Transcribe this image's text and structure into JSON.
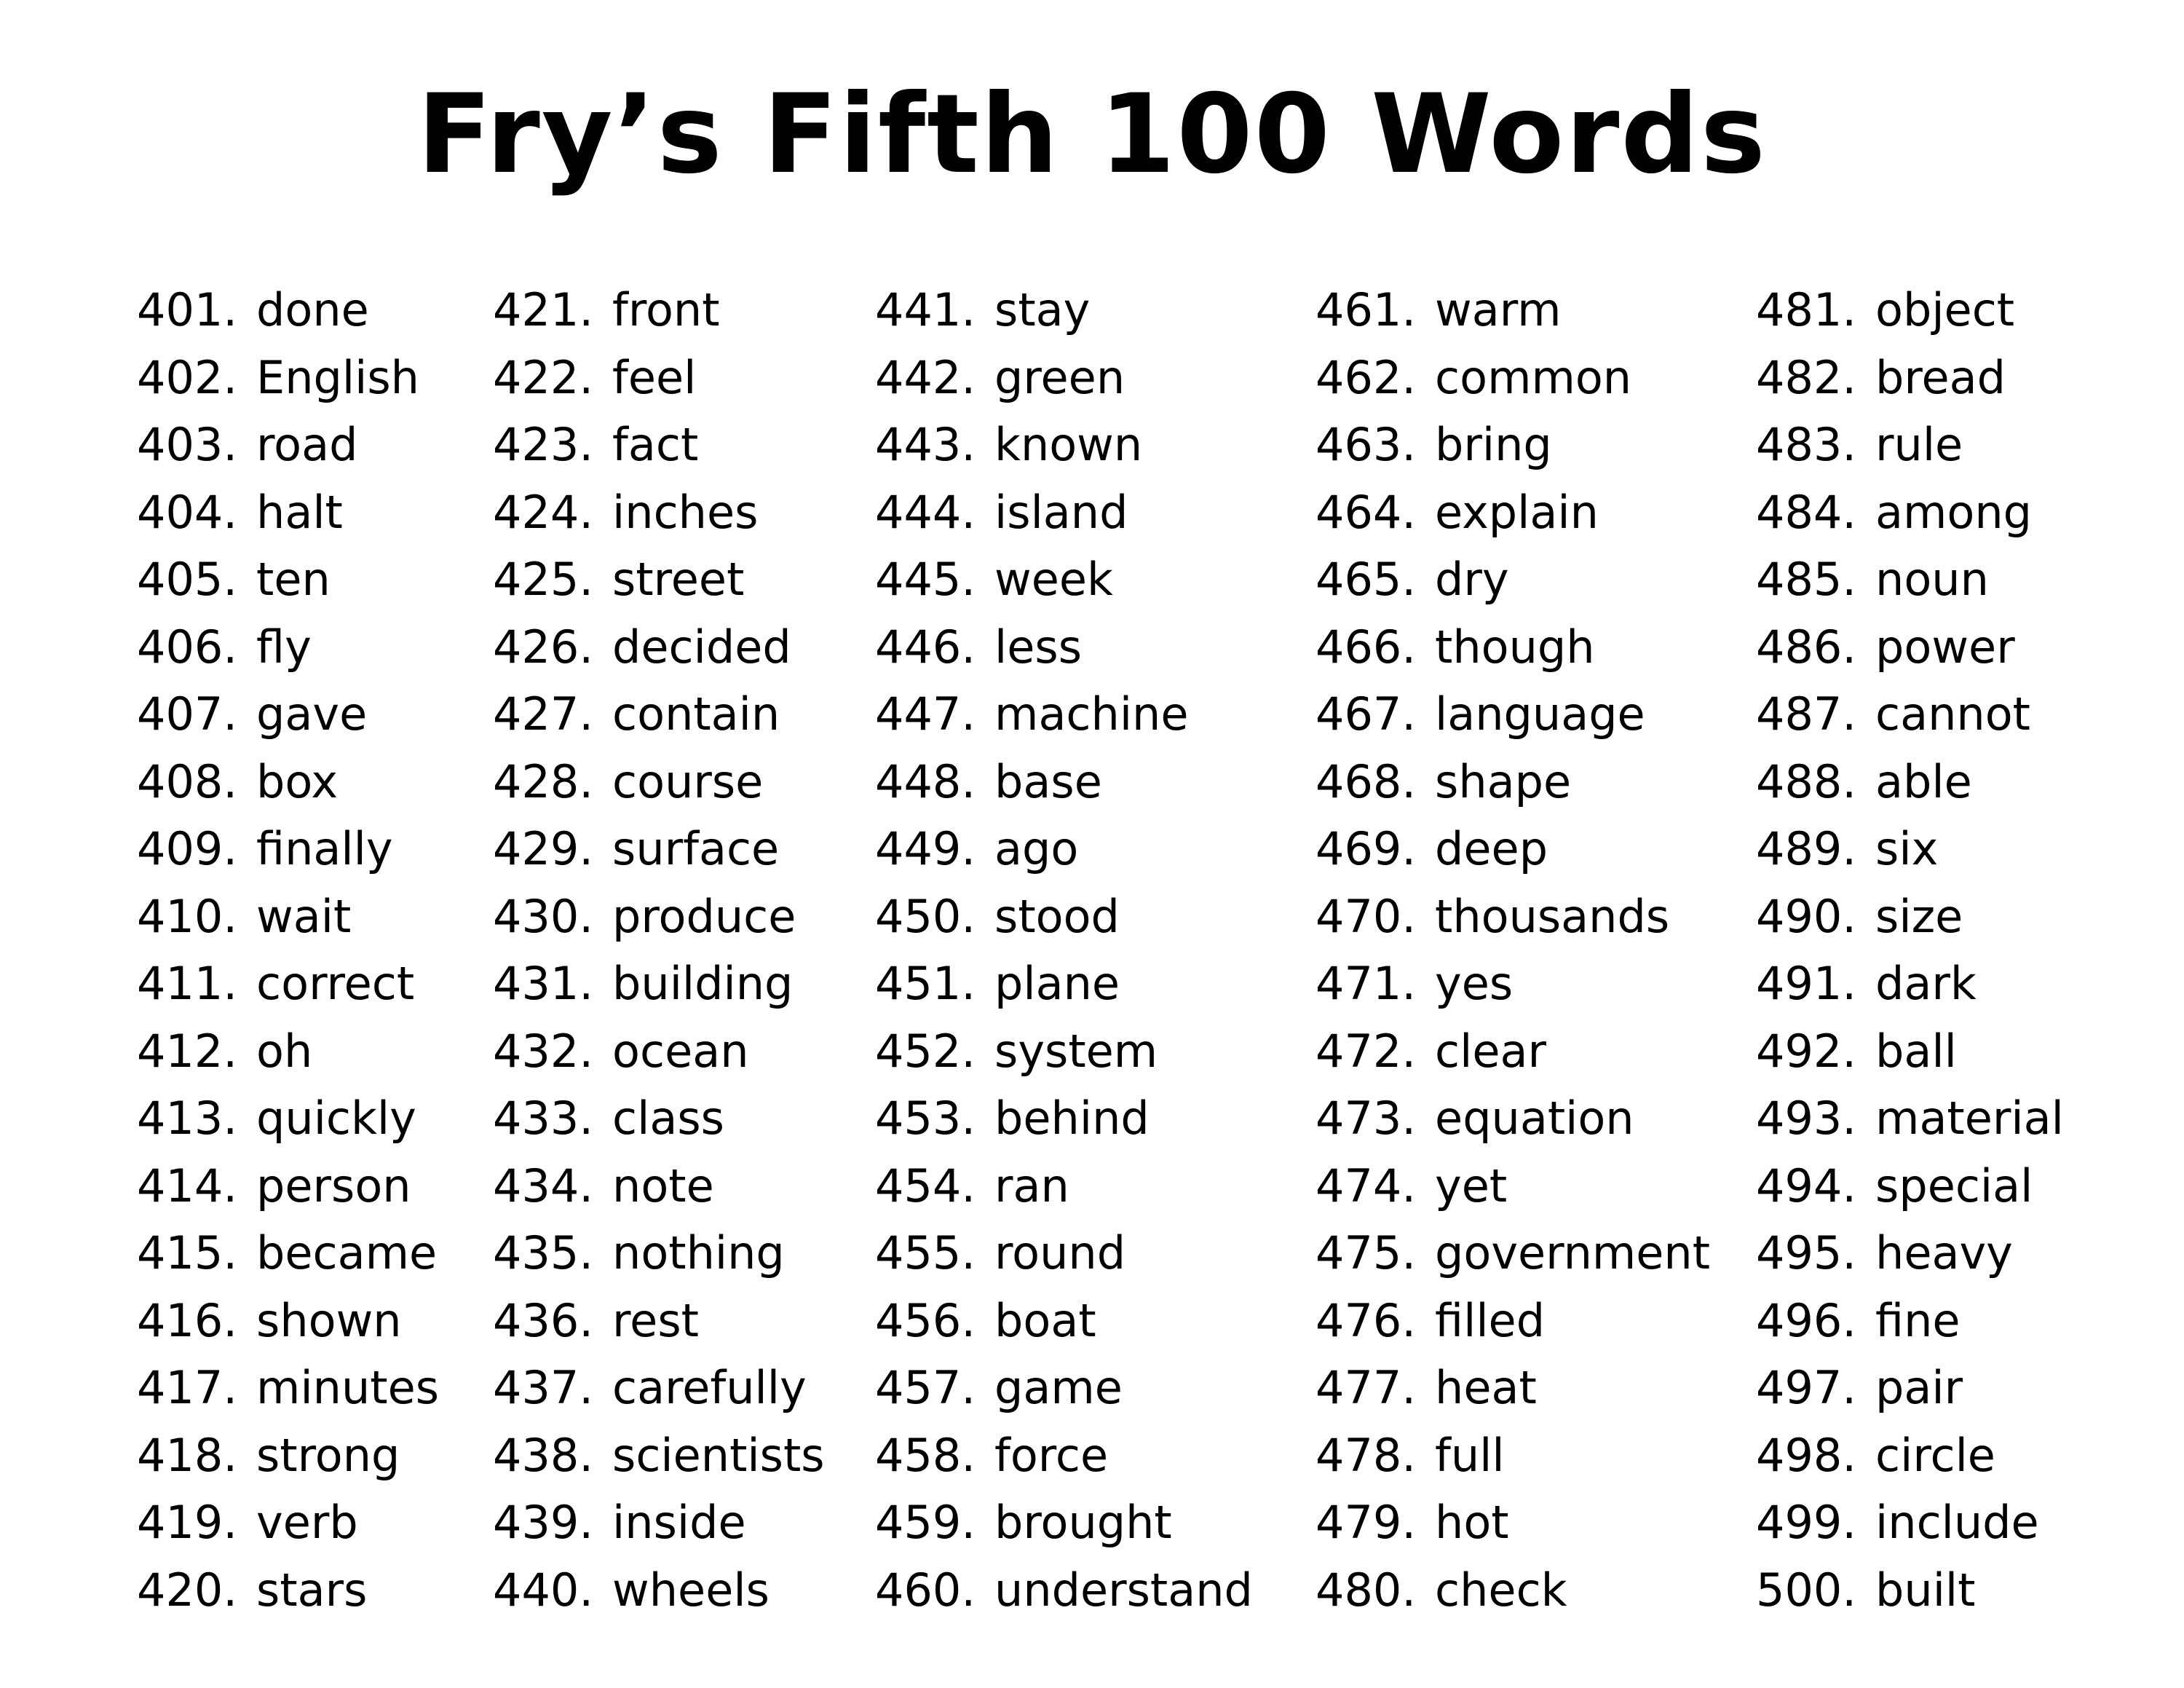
{
  "title": "Fry’s Fifth 100 Words",
  "columns": [
    {
      "items": [
        {
          "num": "401.",
          "word": "done"
        },
        {
          "num": "402.",
          "word": "English"
        },
        {
          "num": "403.",
          "word": "road"
        },
        {
          "num": "404.",
          "word": "halt"
        },
        {
          "num": "405.",
          "word": "ten"
        },
        {
          "num": "406.",
          "word": "fly"
        },
        {
          "num": "407.",
          "word": "gave"
        },
        {
          "num": "408.",
          "word": "box"
        },
        {
          "num": "409.",
          "word": "finally"
        },
        {
          "num": "410.",
          "word": "wait"
        },
        {
          "num": "411.",
          "word": "correct"
        },
        {
          "num": "412.",
          "word": "oh"
        },
        {
          "num": "413.",
          "word": "quickly"
        },
        {
          "num": "414.",
          "word": "person"
        },
        {
          "num": "415.",
          "word": "became"
        },
        {
          "num": "416.",
          "word": "shown"
        },
        {
          "num": "417.",
          "word": "minutes"
        },
        {
          "num": "418.",
          "word": "strong"
        },
        {
          "num": "419.",
          "word": "verb"
        },
        {
          "num": "420.",
          "word": "stars"
        }
      ]
    },
    {
      "items": [
        {
          "num": "421.",
          "word": "front"
        },
        {
          "num": "422.",
          "word": "feel"
        },
        {
          "num": "423.",
          "word": "fact"
        },
        {
          "num": "424.",
          "word": "inches"
        },
        {
          "num": "425.",
          "word": "street"
        },
        {
          "num": "426.",
          "word": "decided"
        },
        {
          "num": "427.",
          "word": "contain"
        },
        {
          "num": "428.",
          "word": "course"
        },
        {
          "num": "429.",
          "word": "surface"
        },
        {
          "num": "430.",
          "word": "produce"
        },
        {
          "num": "431.",
          "word": "building"
        },
        {
          "num": "432.",
          "word": "ocean"
        },
        {
          "num": "433.",
          "word": "class"
        },
        {
          "num": "434.",
          "word": "note"
        },
        {
          "num": "435.",
          "word": "nothing"
        },
        {
          "num": "436.",
          "word": "rest"
        },
        {
          "num": "437.",
          "word": "carefully"
        },
        {
          "num": "438.",
          "word": "scientists"
        },
        {
          "num": "439.",
          "word": "inside"
        },
        {
          "num": "440.",
          "word": "wheels"
        }
      ]
    },
    {
      "items": [
        {
          "num": "441.",
          "word": "stay"
        },
        {
          "num": "442.",
          "word": "green"
        },
        {
          "num": "443.",
          "word": "known"
        },
        {
          "num": "444.",
          "word": "island"
        },
        {
          "num": "445.",
          "word": "week"
        },
        {
          "num": "446.",
          "word": "less"
        },
        {
          "num": "447.",
          "word": "machine"
        },
        {
          "num": "448.",
          "word": "base"
        },
        {
          "num": "449.",
          "word": "ago"
        },
        {
          "num": "450.",
          "word": "stood"
        },
        {
          "num": "451.",
          "word": "plane"
        },
        {
          "num": "452.",
          "word": "system"
        },
        {
          "num": "453.",
          "word": "behind"
        },
        {
          "num": "454.",
          "word": "ran"
        },
        {
          "num": "455.",
          "word": "round"
        },
        {
          "num": "456.",
          "word": "boat"
        },
        {
          "num": "457.",
          "word": "game"
        },
        {
          "num": "458.",
          "word": "force"
        },
        {
          "num": "459.",
          "word": "brought"
        },
        {
          "num": "460.",
          "word": "understand"
        }
      ]
    },
    {
      "items": [
        {
          "num": "461.",
          "word": "warm"
        },
        {
          "num": "462.",
          "word": "common"
        },
        {
          "num": "463.",
          "word": "bring"
        },
        {
          "num": "464.",
          "word": "explain"
        },
        {
          "num": "465.",
          "word": "dry"
        },
        {
          "num": "466.",
          "word": "though"
        },
        {
          "num": "467.",
          "word": "language"
        },
        {
          "num": "468.",
          "word": "shape"
        },
        {
          "num": "469.",
          "word": "deep"
        },
        {
          "num": "470.",
          "word": "thousands"
        },
        {
          "num": "471.",
          "word": "yes"
        },
        {
          "num": "472.",
          "word": "clear"
        },
        {
          "num": "473.",
          "word": "equation"
        },
        {
          "num": "474.",
          "word": "yet"
        },
        {
          "num": "475.",
          "word": "government"
        },
        {
          "num": "476.",
          "word": "filled"
        },
        {
          "num": "477.",
          "word": "heat"
        },
        {
          "num": "478.",
          "word": "full"
        },
        {
          "num": "479.",
          "word": "hot"
        },
        {
          "num": "480.",
          "word": "check"
        }
      ]
    },
    {
      "items": [
        {
          "num": "481.",
          "word": "object"
        },
        {
          "num": "482.",
          "word": "bread"
        },
        {
          "num": "483.",
          "word": "rule"
        },
        {
          "num": "484.",
          "word": "among"
        },
        {
          "num": "485.",
          "word": "noun"
        },
        {
          "num": "486.",
          "word": "power"
        },
        {
          "num": "487.",
          "word": "cannot"
        },
        {
          "num": "488.",
          "word": "able"
        },
        {
          "num": "489.",
          "word": "six"
        },
        {
          "num": "490.",
          "word": "size"
        },
        {
          "num": "491.",
          "word": "dark"
        },
        {
          "num": "492.",
          "word": "ball"
        },
        {
          "num": "493.",
          "word": "material"
        },
        {
          "num": "494.",
          "word": "special"
        },
        {
          "num": "495.",
          "word": "heavy"
        },
        {
          "num": "496.",
          "word": "fine"
        },
        {
          "num": "497.",
          "word": "pair"
        },
        {
          "num": "498.",
          "word": "circle"
        },
        {
          "num": "499.",
          "word": "include"
        },
        {
          "num": "500.",
          "word": "built"
        }
      ]
    }
  ]
}
